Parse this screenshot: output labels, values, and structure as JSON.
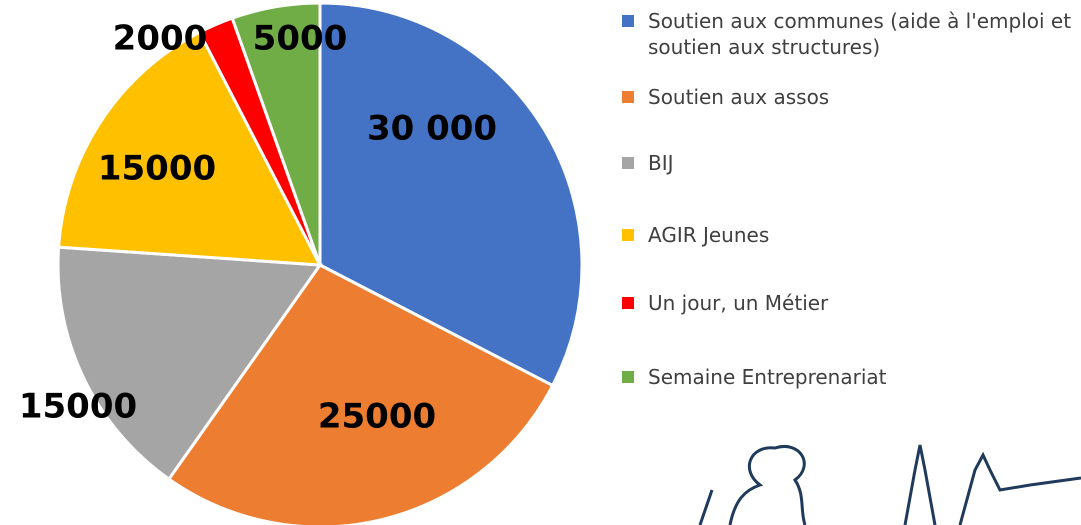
{
  "chart_data": {
    "type": "pie",
    "categories": [
      "Soutien aux communes (aide à l'emploi et soutien aux structures)",
      "Soutien aux assos",
      "BIJ",
      "AGIR Jeunes",
      "Un jour, un Métier",
      "Semaine Entreprenariat"
    ],
    "values": [
      30000,
      25000,
      15000,
      15000,
      2000,
      5000
    ],
    "value_labels": [
      "30 000",
      "25000",
      "15000",
      "15000",
      "2000",
      "5000"
    ],
    "colors": [
      "#4472c4",
      "#ed7d31",
      "#a5a5a5",
      "#ffc000",
      "#ff0000",
      "#70ad47"
    ]
  }
}
